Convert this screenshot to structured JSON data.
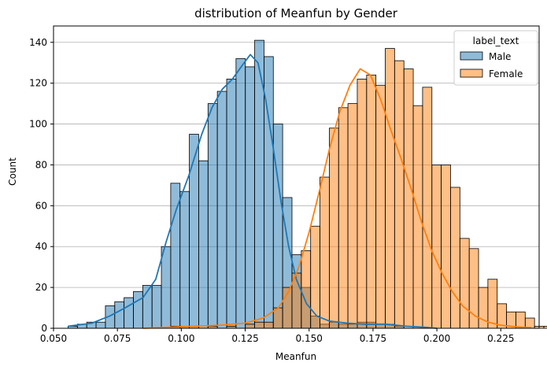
{
  "chart_data": {
    "type": "bar",
    "subtype": "histogram-with-kde",
    "title": "distribution of Meanfun by Gender",
    "xlabel": "Meanfun",
    "ylabel": "Count",
    "xlim": [
      0.05,
      0.24
    ],
    "ylim": [
      0,
      148
    ],
    "xticks": [
      0.05,
      0.075,
      0.1,
      0.125,
      0.15,
      0.175,
      0.2,
      0.225
    ],
    "xtick_labels": [
      "0.050",
      "0.075",
      "0.100",
      "0.125",
      "0.150",
      "0.175",
      "0.200",
      "0.225"
    ],
    "yticks": [
      0,
      20,
      40,
      60,
      80,
      100,
      120,
      140
    ],
    "ytick_labels": [
      "0",
      "20",
      "40",
      "60",
      "80",
      "100",
      "120",
      "140"
    ],
    "grid": "y",
    "legend": {
      "title": "label_text",
      "position": "top-right",
      "entries": [
        "Male",
        "Female"
      ]
    },
    "bin_start": 0.0557,
    "bin_width": 0.00365,
    "series": [
      {
        "name": "Male",
        "color": "#1f77b4",
        "counts": [
          1,
          2,
          3,
          3,
          11,
          13,
          15,
          18,
          21,
          21,
          40,
          71,
          67,
          95,
          82,
          110,
          116,
          122,
          132,
          128,
          141,
          133,
          100,
          64,
          36,
          20,
          6,
          2,
          3,
          2,
          2,
          3,
          3,
          2,
          2,
          1,
          0,
          0,
          0,
          0,
          0,
          0,
          0,
          0,
          0,
          0,
          0,
          0
        ],
        "kde": [
          [
            0.0557,
            1
          ],
          [
            0.065,
            2.5
          ],
          [
            0.072,
            6
          ],
          [
            0.078,
            10
          ],
          [
            0.085,
            15
          ],
          [
            0.09,
            24
          ],
          [
            0.094,
            42
          ],
          [
            0.098,
            58
          ],
          [
            0.103,
            75
          ],
          [
            0.108,
            95
          ],
          [
            0.112,
            108
          ],
          [
            0.116,
            117
          ],
          [
            0.12,
            122
          ],
          [
            0.124,
            129
          ],
          [
            0.127,
            134
          ],
          [
            0.13,
            130
          ],
          [
            0.133,
            112
          ],
          [
            0.136,
            88
          ],
          [
            0.139,
            62
          ],
          [
            0.142,
            40
          ],
          [
            0.145,
            24
          ],
          [
            0.149,
            12
          ],
          [
            0.153,
            6
          ],
          [
            0.158,
            3.5
          ],
          [
            0.165,
            2.5
          ],
          [
            0.172,
            2
          ],
          [
            0.18,
            2
          ],
          [
            0.188,
            1
          ],
          [
            0.195,
            0.5
          ],
          [
            0.2,
            0
          ]
        ]
      },
      {
        "name": "Female",
        "color": "#ff7f0e",
        "counts": [
          0,
          0,
          0,
          0,
          0,
          0,
          0,
          0,
          0,
          0,
          0,
          1,
          1,
          1,
          0,
          1,
          0,
          1,
          0,
          2,
          3,
          3,
          10,
          20,
          27,
          38,
          50,
          74,
          98,
          108,
          110,
          122,
          124,
          119,
          137,
          131,
          127,
          109,
          118,
          80,
          80,
          69,
          44,
          39,
          20,
          24,
          12,
          8,
          8,
          5,
          1,
          1,
          1
        ],
        "kde": [
          [
            0.085,
            0
          ],
          [
            0.095,
            0.5
          ],
          [
            0.105,
            1
          ],
          [
            0.115,
            1.5
          ],
          [
            0.125,
            2.5
          ],
          [
            0.132,
            5
          ],
          [
            0.138,
            10
          ],
          [
            0.142,
            18
          ],
          [
            0.146,
            30
          ],
          [
            0.15,
            47
          ],
          [
            0.154,
            67
          ],
          [
            0.158,
            88
          ],
          [
            0.162,
            106
          ],
          [
            0.166,
            119
          ],
          [
            0.17,
            127
          ],
          [
            0.174,
            124
          ],
          [
            0.178,
            112
          ],
          [
            0.182,
            97
          ],
          [
            0.186,
            83
          ],
          [
            0.19,
            68
          ],
          [
            0.194,
            52
          ],
          [
            0.198,
            38
          ],
          [
            0.202,
            27
          ],
          [
            0.206,
            18
          ],
          [
            0.21,
            11
          ],
          [
            0.215,
            6
          ],
          [
            0.22,
            3
          ],
          [
            0.225,
            1.5
          ],
          [
            0.232,
            0.6
          ],
          [
            0.237,
            0.3
          ]
        ]
      }
    ]
  }
}
